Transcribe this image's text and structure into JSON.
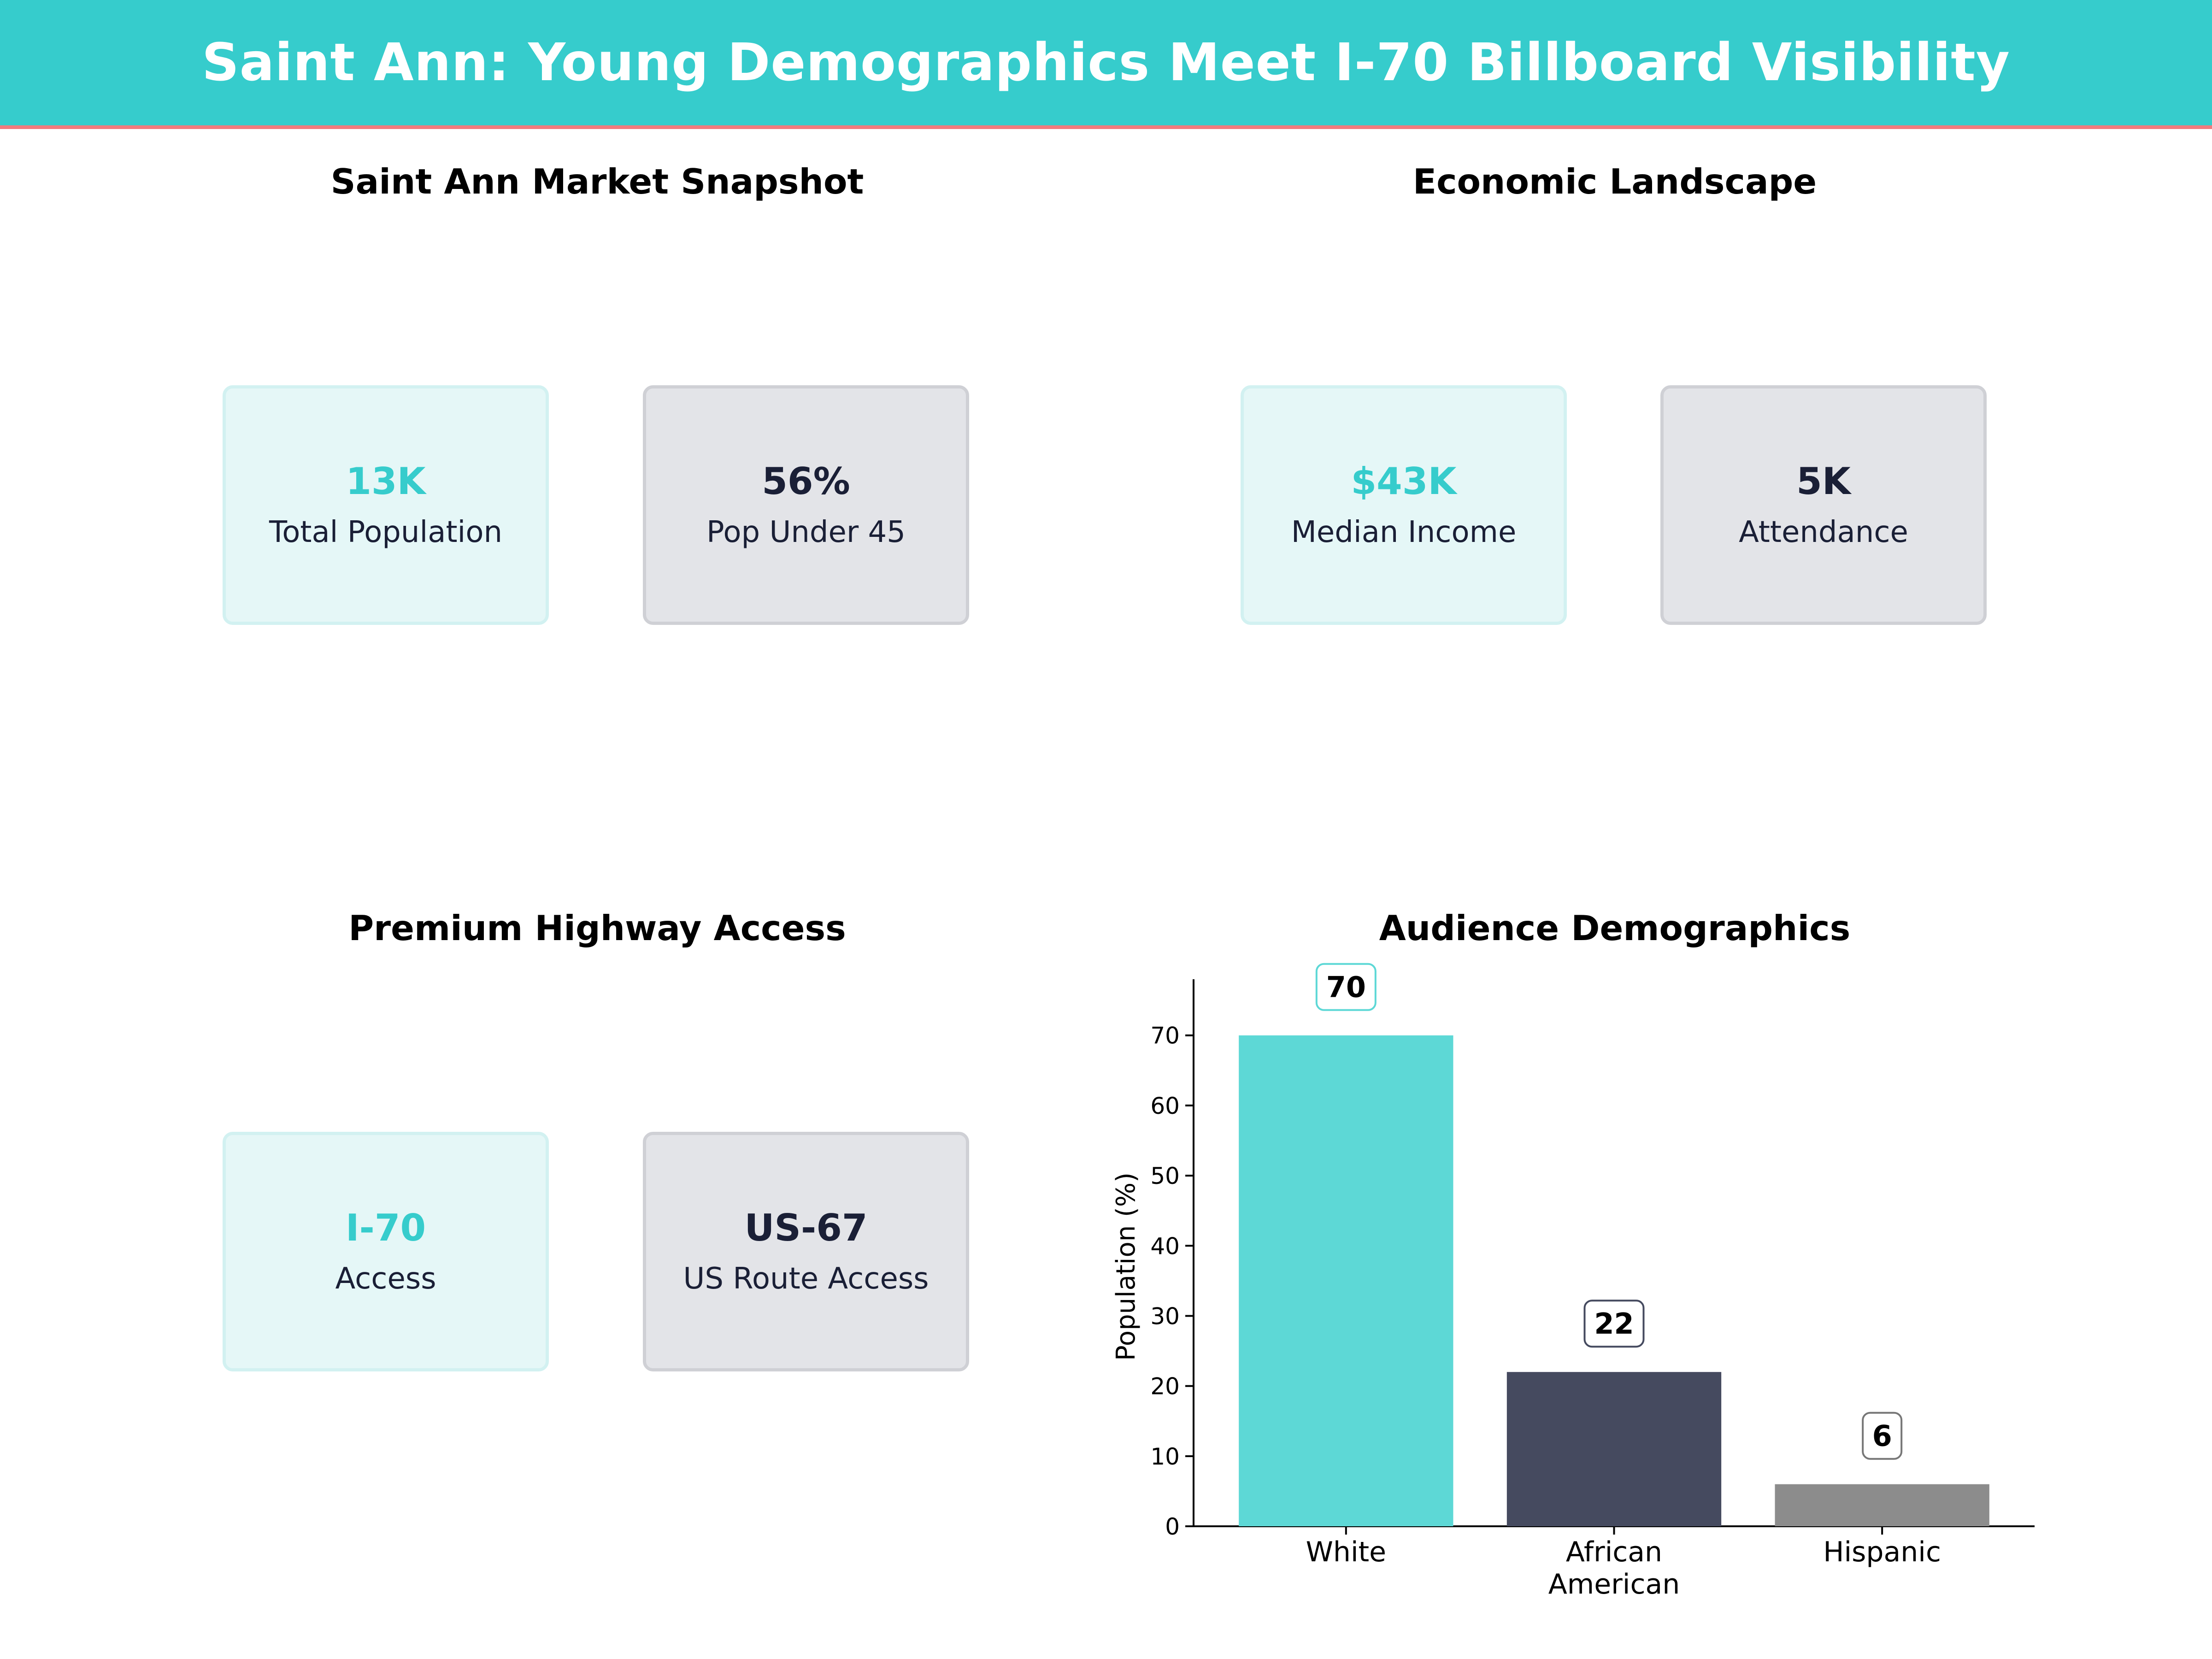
{
  "banner": {
    "title": "Saint Ann: Young Demographics Meet I-70 Billboard Visibility",
    "bg_color": "#36cccc",
    "accent_line_color": "#f27a7d"
  },
  "panels": {
    "snapshot": {
      "title": "Saint Ann Market Snapshot",
      "cards": [
        {
          "value": "13K",
          "label": "Total Population"
        },
        {
          "value": "56%",
          "label": "Pop Under 45"
        }
      ]
    },
    "economic": {
      "title": "Economic Landscape",
      "cards": [
        {
          "value": "$43K",
          "label": "Median Income"
        },
        {
          "value": "5K",
          "label": "Attendance"
        }
      ]
    },
    "highway": {
      "title": "Premium Highway Access",
      "cards": [
        {
          "value": "I-70",
          "label": "Access"
        },
        {
          "value": "US-67",
          "label": "US Route Access"
        }
      ]
    },
    "demographics": {
      "title": "Audience Demographics"
    }
  },
  "chart_data": {
    "type": "bar",
    "title": "Audience Demographics",
    "categories": [
      "White",
      "African American",
      "Hispanic"
    ],
    "category_lines": [
      [
        "White"
      ],
      [
        "African",
        "American"
      ],
      [
        "Hispanic"
      ]
    ],
    "values": [
      70,
      22,
      6
    ],
    "data_labels": [
      "70",
      "22",
      "6"
    ],
    "colors": [
      "#5dd8d6",
      "#454a5f",
      "#8c8c8c"
    ],
    "label_border_colors": [
      "#5dd8d6",
      "#454a5f",
      "#777777"
    ],
    "xlabel": "",
    "ylabel": "Population (%)",
    "ylim": [
      0,
      78
    ],
    "yticks": [
      0,
      10,
      20,
      30,
      40,
      50,
      60,
      70
    ],
    "grid": false
  }
}
